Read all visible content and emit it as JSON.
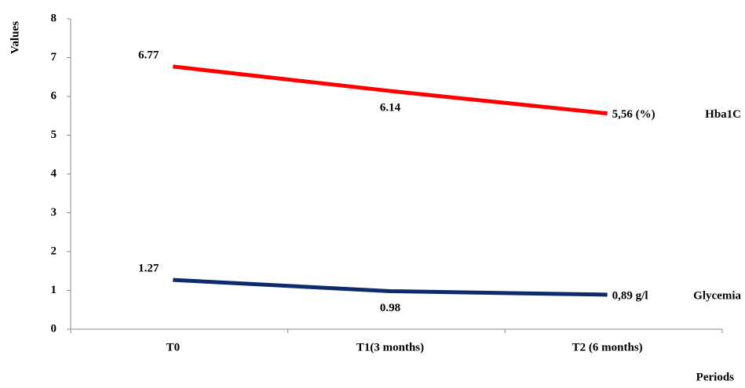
{
  "chart_data": {
    "type": "line",
    "y_label": "Values",
    "x_label": "Periods",
    "categories": [
      "T0",
      "T1(3 months)",
      "T2 (6 months)"
    ],
    "series": [
      {
        "name": "Hba1C",
        "color": "#ff0000",
        "values": [
          6.77,
          6.14,
          5.56
        ],
        "value_labels": [
          "6.77",
          "6.14",
          "5,56 (%)"
        ]
      },
      {
        "name": "Glycemia",
        "color": "#0d2a6b",
        "values": [
          1.27,
          0.98,
          0.89
        ],
        "value_labels": [
          "1.27",
          "0.98",
          "0,89 g/l"
        ]
      }
    ],
    "ylim": [
      0,
      8
    ],
    "yticks": [
      0,
      1,
      2,
      3,
      4,
      5,
      6,
      7,
      8
    ],
    "grid": false
  }
}
